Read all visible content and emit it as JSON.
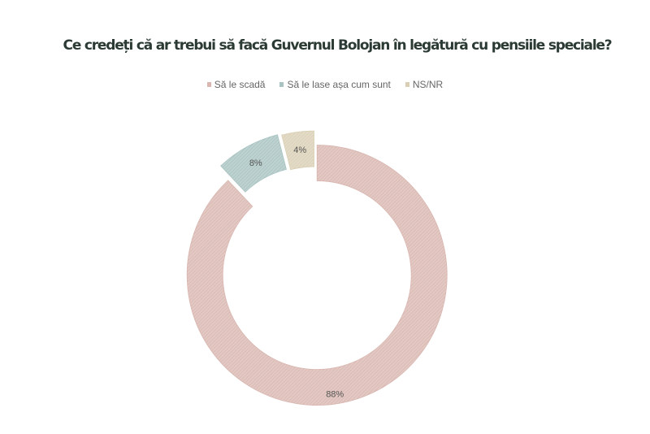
{
  "chart_data": {
    "type": "pie",
    "donut": true,
    "title": "Ce credeți că ar trebui să facă Guvernul Bolojan în legătură cu pensiile speciale?",
    "legend_position": "top",
    "categories": [
      "Să le scadă",
      "Să le lase așa cum sunt",
      "NS/NR"
    ],
    "values": [
      88,
      8,
      4
    ],
    "data_labels": [
      "88%",
      "8%",
      "4%"
    ],
    "colors": [
      "#d9b6b0",
      "#a8c3c1",
      "#d9cfb4"
    ],
    "fill_style": "hatched"
  }
}
